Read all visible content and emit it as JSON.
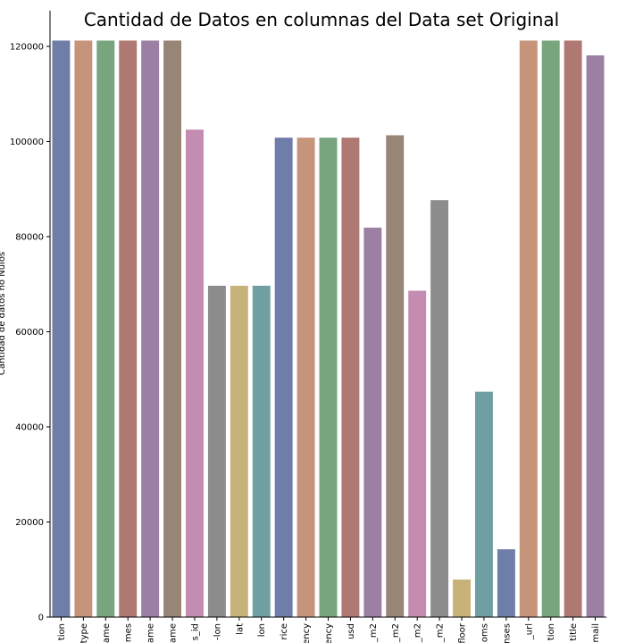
{
  "chart_data": {
    "type": "bar",
    "title": "Cantidad de Datos en columnas del Data set Original",
    "xlabel": "",
    "ylabel": "Cantidad de datos no Nulos",
    "ylim": [
      0,
      127500
    ],
    "yticks": [
      0,
      20000,
      40000,
      60000,
      80000,
      100000,
      120000
    ],
    "ytick_labels": [
      "0",
      "20000",
      "40000",
      "60000",
      "80000",
      "100000",
      "120000"
    ],
    "grid": false,
    "categories": [
      "tion",
      "type",
      "ame",
      "mes",
      "ame",
      "ame",
      "s_id",
      "-lon",
      "lat",
      "lon",
      "rice",
      "ency",
      "ency",
      "usd",
      "_m2",
      "_m2",
      "_m2",
      "_m2",
      "floor",
      "oms",
      "nses",
      "_url",
      "tion",
      "title",
      "mail"
    ],
    "values": [
      121220,
      121220,
      121220,
      121220,
      121220,
      121220,
      102503,
      69670,
      69670,
      69670,
      100810,
      100809,
      100809,
      100810,
      81892,
      101313,
      68617,
      87658,
      7899,
      47390,
      14262,
      121220,
      121220,
      121220,
      118108
    ],
    "colors": [
      "#6f7ea8",
      "#c6937b",
      "#78a57e",
      "#b07872",
      "#9c80a3",
      "#978576",
      "#c38cb0",
      "#8c8c8c",
      "#c7b27a",
      "#6f9fa3",
      "#6f7ea8",
      "#c6937b",
      "#78a57e",
      "#b07872",
      "#9c80a3",
      "#978576",
      "#c38cb0",
      "#8c8c8c",
      "#c7b27a",
      "#6f9fa3",
      "#6f7ea8",
      "#c6937b",
      "#78a57e",
      "#b07872",
      "#9c80a3"
    ]
  }
}
